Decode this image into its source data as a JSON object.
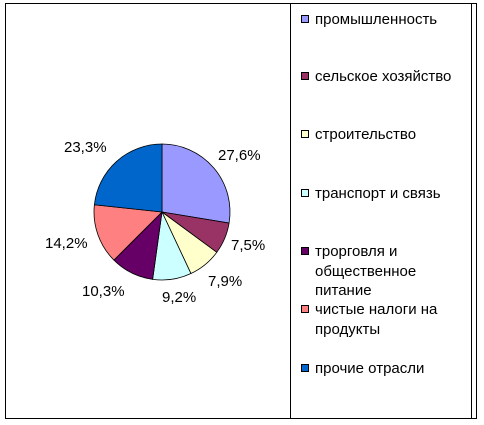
{
  "chart_data": {
    "type": "pie",
    "categories": [
      "промышленность",
      "сельское хозяйство",
      "строительство",
      "транспорт и связь",
      "трорговля и общественное питание",
      "чистые налоги на продукты",
      "прочие отрасли"
    ],
    "values": [
      27.6,
      7.5,
      7.9,
      9.2,
      10.3,
      14.2,
      23.3
    ],
    "value_labels": [
      "27,6%",
      "7,5%",
      "7,9%",
      "9,2%",
      "10,3%",
      "14,2%",
      "23,3%"
    ],
    "colors": [
      "#9999ff",
      "#993366",
      "#ffffcc",
      "#ccffff",
      "#660066",
      "#ff8080",
      "#0066cc"
    ],
    "legend_position": "right",
    "legend_display": [
      "промышленность",
      "сельское хозяйство",
      "строительство",
      "транспорт и связь",
      "трорговля и\nобщественное\nпитание",
      "чистые налоги на\nпродукты",
      "прочие отрасли"
    ]
  }
}
